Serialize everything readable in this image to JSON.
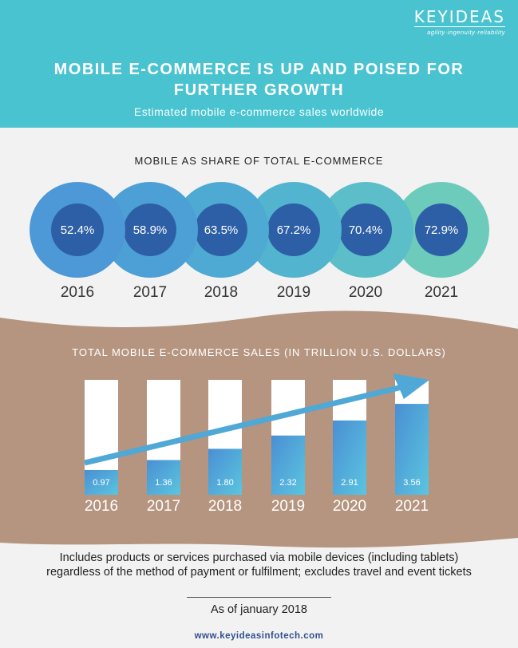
{
  "header": {
    "logo_name": "KEYIDEAS",
    "logo_tagline": "agility·ingenuity·reliability",
    "title_line1": "MOBILE E-COMMERCE IS UP AND POISED FOR",
    "title_line2": "FURTHER GROWTH",
    "subtitle": "Estimated mobile e-commerce sales worldwide"
  },
  "colors": {
    "header_bg": "#4ac3d0",
    "bottom_band": "#b59580",
    "circle_inner": "#2d5fa6",
    "bar_fill_start": "#4a8fd4",
    "bar_fill_end": "#5bc5df",
    "arrow": "#4fa8d6"
  },
  "chart_data": [
    {
      "type": "bar",
      "title": "MOBILE AS SHARE OF TOTAL E-COMMERCE",
      "categories": [
        "2016",
        "2017",
        "2018",
        "2019",
        "2020",
        "2021"
      ],
      "values": [
        52.4,
        58.9,
        63.5,
        67.2,
        70.4,
        72.9
      ],
      "value_labels": [
        "52.4%",
        "58.9%",
        "63.5%",
        "67.2%",
        "70.4%",
        "72.9%"
      ],
      "unit": "%"
    },
    {
      "type": "bar",
      "title": "TOTAL MOBILE E-COMMERCE SALES (IN TRILLION U.S. DOLLARS)",
      "categories": [
        "2016",
        "2017",
        "2018",
        "2019",
        "2020",
        "2021"
      ],
      "values": [
        0.97,
        1.36,
        1.8,
        2.32,
        2.91,
        3.56
      ],
      "value_labels": [
        "0.97",
        "1.36",
        "1.80",
        "2.32",
        "2.91",
        "3.56"
      ],
      "ylim": [
        0,
        4.5
      ],
      "trend_arrow": true
    }
  ],
  "footer": {
    "note": "Includes products or services purchased via mobile devices (including tablets) regardless of the method of payment or fulfilment; excludes travel and event tickets",
    "as_of": "As of january 2018",
    "url": "www.keyideasinfotech.com"
  }
}
